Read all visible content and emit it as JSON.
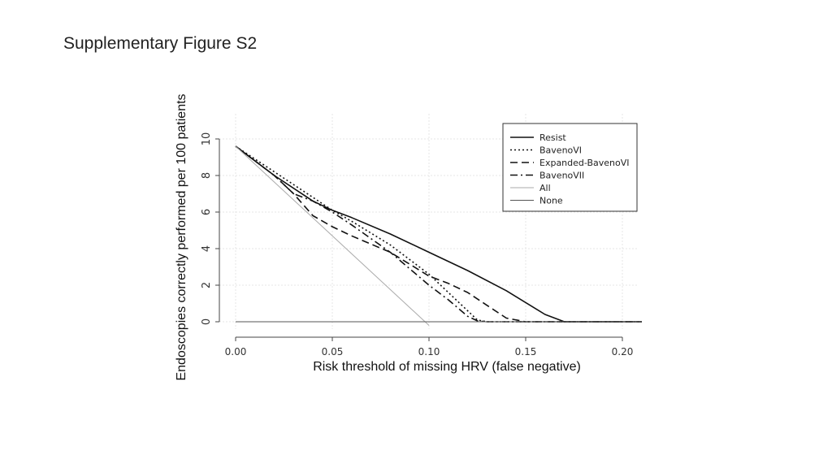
{
  "slide": {
    "title": "Supplementary Figure S2"
  },
  "chart_data": {
    "type": "line",
    "title": "",
    "xlabel": "Risk threshold of missing HRV (false negative)",
    "ylabel": "Endoscopies correctly performed  per 100 patients",
    "xlim": [
      0.0,
      0.21
    ],
    "ylim": [
      0,
      10
    ],
    "xticks": [
      "0.00",
      "0.05",
      "0.10",
      "0.15",
      "0.20"
    ],
    "xtick_values": [
      0.0,
      0.05,
      0.1,
      0.15,
      0.2
    ],
    "yticks": [
      "0",
      "2",
      "4",
      "6",
      "8",
      "10"
    ],
    "ytick_values": [
      0,
      2,
      4,
      6,
      8,
      10
    ],
    "grid": true,
    "legend_position": "top-right",
    "series": [
      {
        "name": "Resist",
        "style": "solid",
        "color": "#111111",
        "x": [
          0.0,
          0.02,
          0.04,
          0.05,
          0.06,
          0.08,
          0.1,
          0.12,
          0.14,
          0.16,
          0.17,
          0.21
        ],
        "y": [
          9.6,
          8.0,
          6.6,
          6.1,
          5.7,
          4.8,
          3.8,
          2.8,
          1.7,
          0.4,
          0.0,
          0.0
        ]
      },
      {
        "name": "BavenoVI",
        "style": "dotted",
        "color": "#111111",
        "x": [
          0.0,
          0.02,
          0.04,
          0.05,
          0.06,
          0.08,
          0.1,
          0.11,
          0.12,
          0.125,
          0.13,
          0.21
        ],
        "y": [
          9.6,
          8.2,
          6.8,
          6.1,
          5.5,
          4.2,
          2.6,
          1.6,
          0.6,
          0.1,
          0.0,
          0.0
        ]
      },
      {
        "name": "Expanded-BavenoVI",
        "style": "dashed",
        "color": "#111111",
        "x": [
          0.0,
          0.02,
          0.03,
          0.04,
          0.05,
          0.06,
          0.08,
          0.1,
          0.11,
          0.12,
          0.13,
          0.14,
          0.15,
          0.21
        ],
        "y": [
          9.6,
          8.0,
          7.0,
          5.8,
          5.2,
          4.7,
          3.8,
          2.5,
          2.1,
          1.6,
          0.9,
          0.2,
          0.0,
          0.0
        ]
      },
      {
        "name": "BavenoVII",
        "style": "dashdot",
        "color": "#111111",
        "x": [
          0.0,
          0.02,
          0.03,
          0.04,
          0.05,
          0.06,
          0.08,
          0.1,
          0.11,
          0.12,
          0.125,
          0.13,
          0.21
        ],
        "y": [
          9.6,
          8.0,
          7.0,
          6.6,
          6.0,
          5.3,
          3.8,
          2.0,
          1.2,
          0.3,
          0.05,
          0.0,
          0.0
        ]
      },
      {
        "name": "All",
        "style": "solid",
        "color": "#aaaaaa",
        "x": [
          0.0,
          0.1
        ],
        "y": [
          9.6,
          -0.2
        ]
      },
      {
        "name": "None",
        "style": "solid",
        "color": "#555555",
        "x": [
          0.0,
          0.21
        ],
        "y": [
          0.0,
          0.0
        ]
      }
    ]
  }
}
